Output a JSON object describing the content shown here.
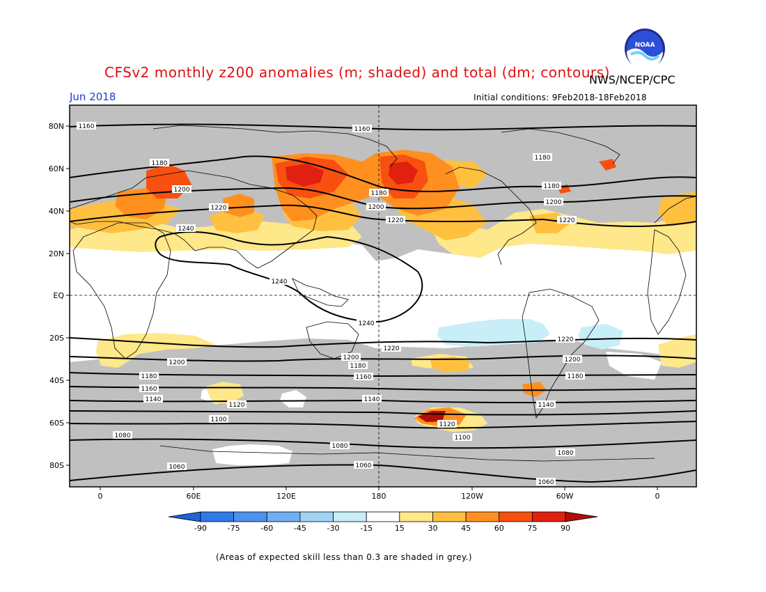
{
  "header": {
    "title": "CFSv2 monthly z200 anomalies (m; shaded) and total (dm; contours)",
    "month": "Jun 2018",
    "agency": "NWS/NCEP/CPC",
    "initial_conditions": "Initial conditions: 9Feb2018-18Feb2018",
    "logo_text": "NOAA"
  },
  "axes": {
    "lat_labels": [
      "80N",
      "60N",
      "40N",
      "20N",
      "EQ",
      "20S",
      "40S",
      "60S",
      "80S"
    ],
    "lon_labels": [
      "0",
      "60E",
      "120E",
      "180",
      "120W",
      "60W",
      "0"
    ]
  },
  "colorbar": {
    "labels": [
      "-90",
      "-75",
      "-60",
      "-45",
      "-30",
      "-15",
      "15",
      "30",
      "45",
      "60",
      "75",
      "90"
    ],
    "colors": [
      "#1c64d8",
      "#2f7ae8",
      "#4d92ec",
      "#70aef0",
      "#a2d2f4",
      "#c8eef8",
      "#ffffff",
      "#ffe88a",
      "#ffc040",
      "#ff9020",
      "#f85010",
      "#e02010",
      "#b00e08"
    ]
  },
  "contours": {
    "labels": [
      "1160",
      "1160",
      "1180",
      "1180",
      "1200",
      "1220",
      "1240",
      "1180",
      "1200",
      "1220",
      "1180",
      "1200",
      "1220",
      "1240",
      "1240",
      "1220",
      "1220",
      "1200",
      "1200",
      "1200",
      "1180",
      "1180",
      "1180",
      "1160",
      "1160",
      "1140",
      "1140",
      "1140",
      "1120",
      "1120",
      "1100",
      "1100",
      "1080",
      "1080",
      "1080",
      "1060",
      "1060",
      "1060"
    ]
  },
  "colors": {
    "grey_low_skill": "#c0c0c0",
    "title_red": "#e01010",
    "month_blue": "#1a3fd6"
  },
  "footnote": "(Areas of expected skill less than 0.3 are shaded in grey.)"
}
